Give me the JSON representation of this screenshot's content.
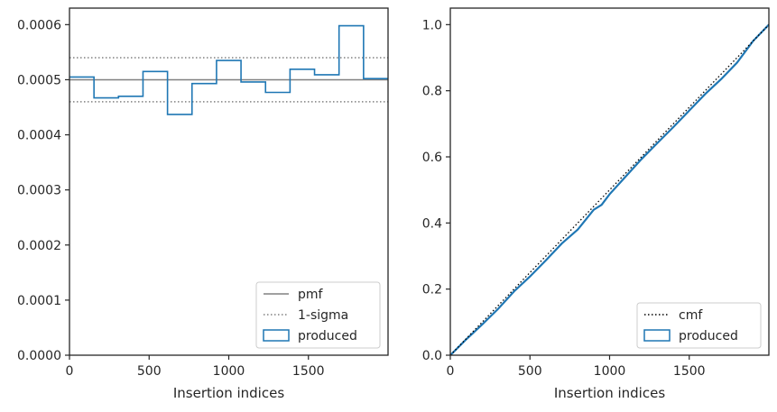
{
  "chart_data": [
    {
      "type": "histogram-step",
      "xlabel": "Insertion indices",
      "ylabel": "",
      "xlim": [
        0,
        2000
      ],
      "ylim": [
        0,
        0.00063
      ],
      "xticks": [
        0,
        500,
        1000,
        1500
      ],
      "yticks": [
        0.0,
        0.0001,
        0.0002,
        0.0003,
        0.0004,
        0.0005,
        0.0006
      ],
      "ytick_labels": [
        "0.0000",
        "0.0001",
        "0.0002",
        "0.0003",
        "0.0004",
        "0.0005",
        "0.0006"
      ],
      "grid": false,
      "legend": {
        "placement": "bottom-right",
        "entries": [
          "pmf",
          "1-sigma",
          "produced"
        ]
      },
      "pmf": {
        "name": "pmf",
        "value": 0.0005,
        "color": "#808080"
      },
      "sigma": {
        "name": "1-sigma",
        "values": [
          0.00054,
          0.00046
        ],
        "color": "#808080"
      },
      "produced": {
        "name": "produced",
        "color": "#1f77b4",
        "bin_edges": [
          0,
          153.8,
          307.7,
          461.5,
          615.4,
          769.2,
          923.1,
          1076.9,
          1230.8,
          1384.6,
          1538.5,
          1692.3,
          1846.2,
          2000
        ],
        "values": [
          0.000505,
          0.000467,
          0.00047,
          0.000515,
          0.000437,
          0.000493,
          0.000535,
          0.000496,
          0.000477,
          0.000519,
          0.000509,
          0.000598,
          0.000502
        ]
      }
    },
    {
      "type": "line",
      "xlabel": "Insertion indices",
      "ylabel": "",
      "xlim": [
        0,
        2000
      ],
      "ylim": [
        0,
        1.05
      ],
      "xticks": [
        0,
        500,
        1000,
        1500
      ],
      "yticks": [
        0.0,
        0.2,
        0.4,
        0.6,
        0.8,
        1.0
      ],
      "ytick_labels": [
        "0.0",
        "0.2",
        "0.4",
        "0.6",
        "0.8",
        "1.0"
      ],
      "grid": false,
      "legend": {
        "placement": "bottom-right",
        "entries": [
          "cmf",
          "produced"
        ]
      },
      "cmf": {
        "name": "cmf",
        "x": [
          0,
          2000
        ],
        "y": [
          0,
          1.0
        ],
        "color": "#000000"
      },
      "produced": {
        "name": "produced",
        "color": "#1f77b4",
        "x": [
          0,
          100,
          200,
          300,
          400,
          500,
          600,
          700,
          800,
          850,
          900,
          950,
          1000,
          1100,
          1200,
          1300,
          1400,
          1500,
          1600,
          1700,
          1800,
          1900,
          2000
        ],
        "y": [
          0,
          0.048,
          0.093,
          0.14,
          0.193,
          0.238,
          0.287,
          0.338,
          0.38,
          0.41,
          0.44,
          0.455,
          0.487,
          0.54,
          0.593,
          0.642,
          0.69,
          0.74,
          0.79,
          0.835,
          0.885,
          0.95,
          1.0
        ]
      }
    }
  ]
}
